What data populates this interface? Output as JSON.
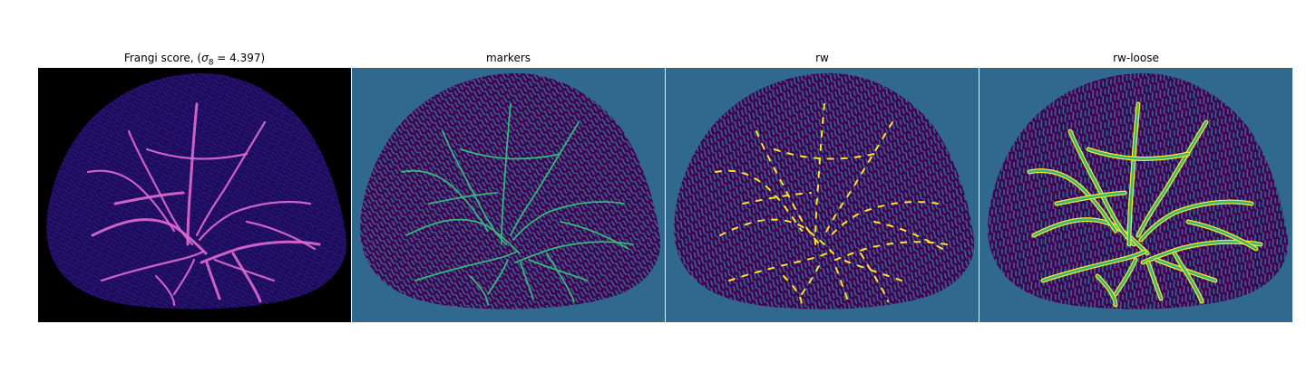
{
  "figure": {
    "panels": [
      {
        "id": "frangi",
        "title_main": "Frangi score, (",
        "title_sigma": "σ",
        "title_sub": "8",
        "title_rest": " = 4.397)",
        "colormap": "magma",
        "background": "#000000",
        "body": "#1d0c59",
        "mesh": "#2a1478",
        "vessel": "#e06ad0"
      },
      {
        "id": "markers",
        "title": "markers",
        "colormap": "viridis",
        "background": "#31688e",
        "body": "#440154",
        "mesh": "#31688e",
        "vessel": "#35b779"
      },
      {
        "id": "rw",
        "title": "rw",
        "colormap": "viridis",
        "background": "#31688e",
        "body": "#440154",
        "mesh": "#31688e",
        "vessel": "#fde725"
      },
      {
        "id": "rw-loose",
        "title": "rw-loose",
        "colormap": "viridis",
        "background": "#31688e",
        "body": "#440154",
        "mesh": "#31688e",
        "vessel": "#35b779",
        "highlight": "#fde725"
      }
    ]
  }
}
